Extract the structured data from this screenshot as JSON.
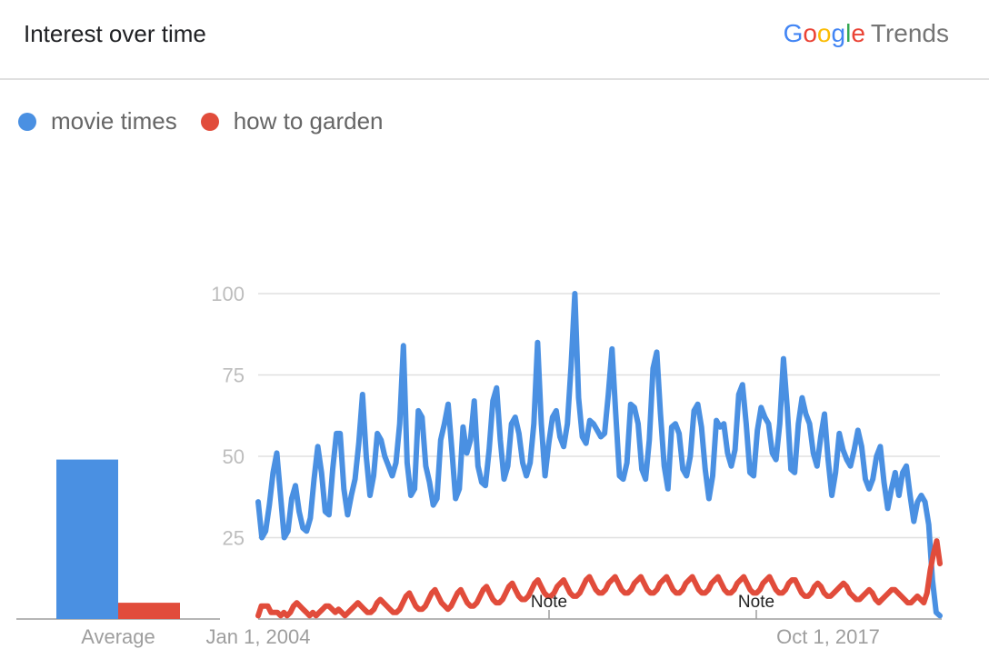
{
  "header": {
    "title": "Interest over time"
  },
  "brand": {
    "g1": "G",
    "g2": "o",
    "g3": "o",
    "g4": "g",
    "g5": "l",
    "g6": "e",
    "trends": "Trends"
  },
  "colors": {
    "movie_times": "#4a90e2",
    "how_to_garden": "#e14c3b",
    "grid": "#e0e0e0"
  },
  "chart_data": {
    "type": "line",
    "ylim": [
      0,
      100
    ],
    "yticks": [
      25,
      50,
      75,
      100
    ],
    "x_tick_labels": [
      "Jan 1, 2004",
      "Oct 1, 2017"
    ],
    "notes": [
      "Note",
      "Note"
    ],
    "average": {
      "label": "Average",
      "values": [
        49,
        5
      ]
    },
    "series": [
      {
        "name": "movie times",
        "values": [
          36,
          25,
          27,
          35,
          45,
          51,
          38,
          25,
          27,
          37,
          41,
          33,
          28,
          27,
          31,
          43,
          53,
          45,
          33,
          32,
          46,
          57,
          57,
          40,
          32,
          38,
          43,
          54,
          69,
          50,
          38,
          44,
          57,
          55,
          50,
          47,
          44,
          48,
          60,
          84,
          48,
          38,
          40,
          64,
          62,
          47,
          42,
          35,
          37,
          55,
          60,
          66,
          52,
          37,
          40,
          59,
          51,
          55,
          67,
          47,
          42,
          41,
          52,
          67,
          71,
          55,
          43,
          47,
          60,
          62,
          57,
          48,
          44,
          48,
          60,
          85,
          60,
          44,
          54,
          62,
          64,
          56,
          53,
          60,
          78,
          100,
          68,
          56,
          54,
          61,
          60,
          58,
          56,
          57,
          69,
          83,
          63,
          44,
          43,
          48,
          66,
          65,
          60,
          46,
          43,
          55,
          77,
          82,
          63,
          47,
          40,
          59,
          60,
          57,
          46,
          44,
          50,
          64,
          66,
          59,
          46,
          37,
          44,
          61,
          59,
          60,
          51,
          47,
          52,
          69,
          72,
          60,
          45,
          44,
          58,
          65,
          62,
          60,
          51,
          49,
          60,
          80,
          65,
          46,
          45,
          60,
          68,
          63,
          60,
          51,
          47,
          56,
          63,
          49,
          38,
          45,
          57,
          52,
          49,
          47,
          52,
          58,
          53,
          43,
          40,
          43,
          50,
          53,
          42,
          34,
          40,
          45,
          38,
          45,
          47,
          38,
          30,
          36,
          38,
          36,
          29,
          12,
          2,
          1
        ],
        "color": "#4a90e2"
      },
      {
        "name": "how to garden",
        "values": [
          1,
          4,
          4,
          4,
          2,
          2,
          2,
          1,
          2,
          1,
          2,
          4,
          5,
          4,
          3,
          2,
          1,
          2,
          1,
          2,
          3,
          4,
          4,
          3,
          2,
          3,
          2,
          1,
          2,
          3,
          4,
          5,
          4,
          3,
          2,
          2,
          3,
          5,
          6,
          5,
          4,
          3,
          2,
          2,
          3,
          5,
          7,
          8,
          6,
          4,
          3,
          3,
          4,
          6,
          8,
          9,
          7,
          5,
          4,
          3,
          4,
          6,
          8,
          9,
          7,
          5,
          4,
          4,
          5,
          7,
          9,
          10,
          8,
          6,
          5,
          5,
          6,
          8,
          10,
          11,
          9,
          7,
          6,
          6,
          7,
          9,
          11,
          12,
          10,
          8,
          7,
          7,
          8,
          10,
          11,
          12,
          10,
          8,
          7,
          7,
          8,
          10,
          12,
          13,
          11,
          9,
          8,
          8,
          9,
          11,
          12,
          13,
          11,
          9,
          8,
          8,
          9,
          11,
          12,
          13,
          11,
          9,
          8,
          8,
          9,
          11,
          12,
          13,
          11,
          9,
          8,
          8,
          9,
          11,
          12,
          13,
          11,
          9,
          8,
          8,
          9,
          11,
          12,
          13,
          11,
          9,
          8,
          8,
          9,
          11,
          12,
          13,
          11,
          9,
          8,
          8,
          9,
          11,
          12,
          13,
          11,
          9,
          8,
          8,
          9,
          11,
          12,
          12,
          10,
          8,
          7,
          7,
          8,
          10,
          11,
          10,
          8,
          7,
          7,
          8,
          9,
          10,
          11,
          10,
          8,
          7,
          6,
          6,
          7,
          8,
          9,
          8,
          6,
          5,
          6,
          7,
          8,
          9,
          9,
          8,
          7,
          6,
          5,
          5,
          6,
          7,
          6,
          5,
          8,
          15,
          20,
          24,
          17
        ],
        "color": "#e14c3b"
      }
    ]
  }
}
